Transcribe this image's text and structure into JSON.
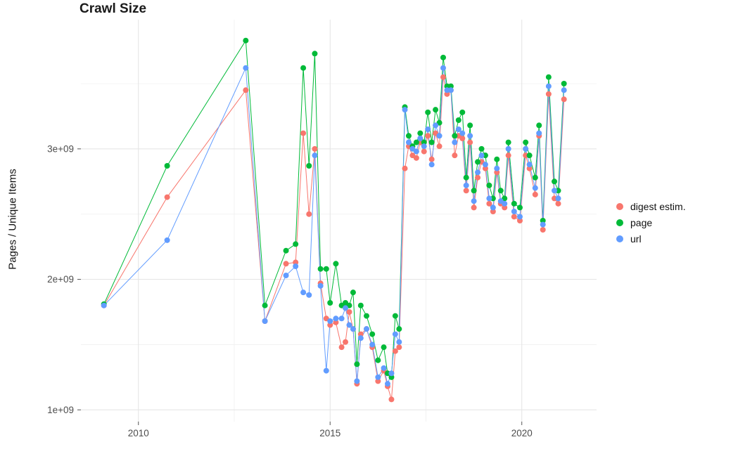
{
  "chart_data": {
    "type": "line",
    "title": "Crawl Size",
    "ylabel": "Pages / Unique Items",
    "xlabel": "",
    "value_unit": "1e+09",
    "xlim": [
      2008.5,
      2021.95
    ],
    "ylim_billions": [
      0.91,
      3.99
    ],
    "x_ticks": {
      "values": [
        2010,
        2015,
        2020
      ],
      "labels": [
        "2010",
        "2015",
        "2020"
      ]
    },
    "y_ticks": {
      "values_billions": [
        1,
        2,
        3
      ],
      "labels": [
        "1e+09",
        "2e+09",
        "3e+09"
      ]
    },
    "x_minor_ticks": [
      2012.5,
      2017.5
    ],
    "y_minor_ticks_billions": [
      1.5,
      2.5,
      3.5
    ],
    "grid": true,
    "legend_position": "right",
    "grid_major_color": "#e3e3e3",
    "grid_minor_color": "#f0f0f0",
    "axis_text_color": "#4d4d4d",
    "tick_mark_color": "#555555",
    "x": [
      2009.1,
      2010.75,
      2012.8,
      2013.3,
      2013.85,
      2014.1,
      2014.3,
      2014.45,
      2014.6,
      2014.75,
      2014.9,
      2015.0,
      2015.15,
      2015.3,
      2015.4,
      2015.5,
      2015.6,
      2015.7,
      2015.8,
      2015.95,
      2016.1,
      2016.25,
      2016.4,
      2016.5,
      2016.6,
      2016.7,
      2016.8,
      2016.95,
      2017.05,
      2017.15,
      2017.25,
      2017.35,
      2017.45,
      2017.55,
      2017.65,
      2017.75,
      2017.85,
      2017.95,
      2018.05,
      2018.15,
      2018.25,
      2018.35,
      2018.45,
      2018.55,
      2018.65,
      2018.75,
      2018.85,
      2018.95,
      2019.05,
      2019.15,
      2019.25,
      2019.35,
      2019.45,
      2019.55,
      2019.65,
      2019.8,
      2019.95,
      2020.1,
      2020.2,
      2020.35,
      2020.45,
      2020.55,
      2020.7,
      2020.85,
      2020.95,
      2021.1
    ],
    "series": [
      {
        "name": "digest estim.",
        "color": "#F8766D",
        "values_billions": [
          1.8,
          2.63,
          3.45,
          1.68,
          2.12,
          2.13,
          3.12,
          2.5,
          3.0,
          1.97,
          1.7,
          1.65,
          1.67,
          1.48,
          1.52,
          1.75,
          1.62,
          1.2,
          1.58,
          1.62,
          1.48,
          1.22,
          1.3,
          1.18,
          1.08,
          1.45,
          1.48,
          2.85,
          3.02,
          2.95,
          2.93,
          3.05,
          2.98,
          3.1,
          2.92,
          3.12,
          3.02,
          3.55,
          3.42,
          3.45,
          2.95,
          3.1,
          3.08,
          2.68,
          3.05,
          2.55,
          2.78,
          2.9,
          2.85,
          2.58,
          2.52,
          2.82,
          2.58,
          2.55,
          2.95,
          2.48,
          2.45,
          2.95,
          2.85,
          2.65,
          3.1,
          2.38,
          3.42,
          2.62,
          2.58,
          3.38
        ]
      },
      {
        "name": "page",
        "color": "#00BA38",
        "values_billions": [
          1.81,
          2.87,
          3.83,
          1.8,
          2.22,
          2.27,
          3.62,
          2.87,
          3.73,
          2.08,
          2.08,
          1.82,
          2.12,
          1.8,
          1.82,
          1.8,
          1.9,
          1.35,
          1.8,
          1.72,
          1.58,
          1.38,
          1.48,
          1.28,
          1.25,
          1.72,
          1.62,
          3.32,
          3.1,
          3.02,
          3.05,
          3.12,
          3.05,
          3.28,
          3.05,
          3.3,
          3.2,
          3.7,
          3.48,
          3.48,
          3.1,
          3.22,
          3.28,
          2.78,
          3.18,
          2.68,
          2.9,
          3.0,
          2.95,
          2.72,
          2.62,
          2.92,
          2.68,
          2.62,
          3.05,
          2.58,
          2.55,
          3.05,
          2.95,
          2.78,
          3.18,
          2.45,
          3.55,
          2.75,
          2.68,
          3.5
        ]
      },
      {
        "name": "url",
        "color": "#619CFF",
        "values_billions": [
          1.8,
          2.3,
          3.62,
          1.68,
          2.03,
          2.1,
          1.9,
          1.88,
          2.95,
          1.95,
          1.3,
          1.68,
          1.7,
          1.7,
          1.78,
          1.65,
          1.62,
          1.22,
          1.55,
          1.62,
          1.5,
          1.25,
          1.32,
          1.2,
          1.28,
          1.58,
          1.52,
          3.3,
          3.05,
          3.0,
          2.98,
          3.08,
          3.02,
          3.15,
          2.88,
          3.18,
          3.1,
          3.62,
          3.45,
          3.45,
          3.05,
          3.15,
          3.12,
          2.72,
          3.1,
          2.6,
          2.82,
          2.95,
          2.88,
          2.62,
          2.55,
          2.85,
          2.6,
          2.58,
          3.0,
          2.52,
          2.48,
          3.0,
          2.88,
          2.7,
          3.12,
          2.42,
          3.48,
          2.68,
          2.62,
          3.45
        ]
      }
    ]
  }
}
